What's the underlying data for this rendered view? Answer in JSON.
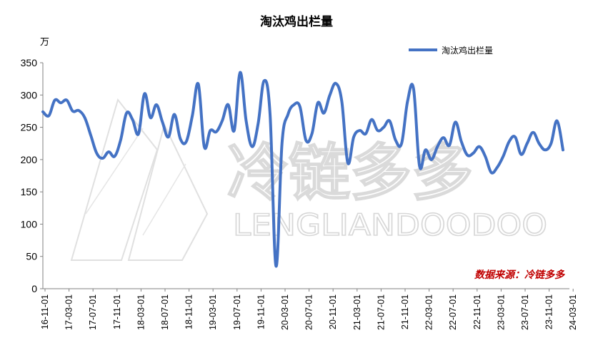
{
  "chart_data": {
    "type": "line",
    "title": "淘汰鸡出栏量",
    "unit_label": "万",
    "ylim": [
      0,
      350
    ],
    "yticks": [
      0,
      50,
      100,
      150,
      200,
      250,
      300,
      350
    ],
    "x_tick_labels": [
      "16-11-01",
      "17-03-01",
      "17-07-01",
      "17-11-01",
      "18-03-01",
      "18-07-01",
      "18-11-01",
      "19-03-01",
      "19-07-01",
      "19-11-01",
      "20-03-01",
      "20-07-01",
      "20-11-01",
      "21-03-01",
      "21-07-01",
      "21-11-01",
      "22-03-01",
      "22-07-01",
      "22-11-01",
      "23-03-01",
      "23-07-01",
      "23-11-01",
      "24-03-01"
    ],
    "legend_position": "top-right",
    "color": "#4472c4",
    "series": [
      {
        "name": "淘汰鸡出栏量",
        "values": [
          274,
          268,
          292,
          288,
          292,
          275,
          276,
          265,
          238,
          210,
          202,
          212,
          205,
          230,
          272,
          262,
          240,
          302,
          265,
          285,
          258,
          235,
          270,
          232,
          228,
          268,
          317,
          220,
          245,
          243,
          260,
          285,
          245,
          335,
          260,
          220,
          255,
          322,
          270,
          35,
          225,
          270,
          285,
          282,
          230,
          240,
          288,
          272,
          300,
          318,
          290,
          195,
          235,
          245,
          240,
          262,
          245,
          250,
          260,
          230,
          225,
          290,
          310,
          190,
          215,
          200,
          220,
          234,
          222,
          258,
          228,
          207,
          210,
          220,
          205,
          180,
          188,
          205,
          228,
          235,
          208,
          225,
          242,
          225,
          215,
          225,
          260,
          215
        ]
      }
    ]
  },
  "watermark": {
    "cn": "冷链多多",
    "en": "LENGLIANDOODOO"
  },
  "source_note": "数据来源：冷链多多"
}
